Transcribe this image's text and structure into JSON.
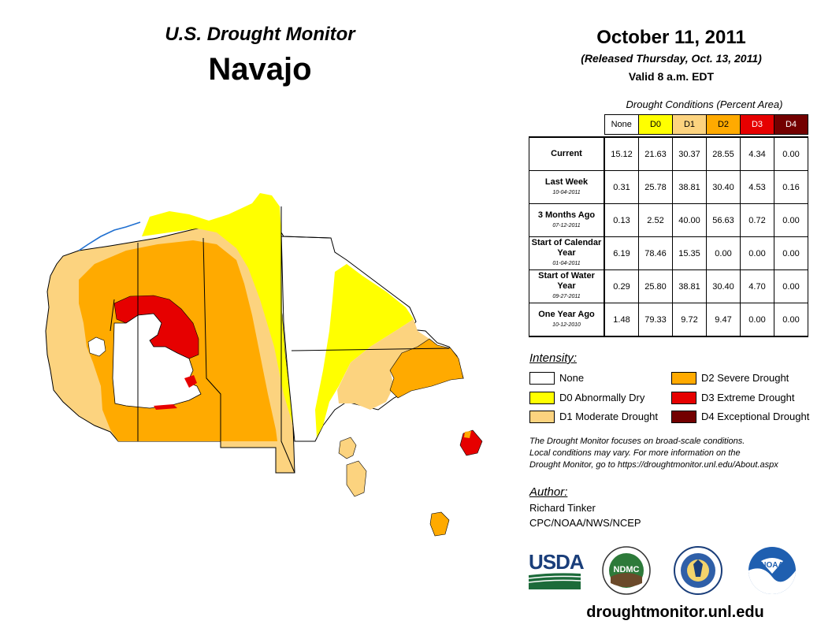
{
  "header": {
    "title": "U.S. Drought Monitor",
    "region": "Navajo",
    "date": "October 11, 2011",
    "released": "(Released Thursday, Oct. 13, 2011)",
    "valid": "Valid 8 a.m. EDT"
  },
  "conditions": {
    "title": "Drought Conditions (Percent Area)",
    "columns": [
      "None",
      "D0",
      "D1",
      "D2",
      "D3",
      "D4"
    ],
    "column_colors": [
      "#ffffff",
      "#ffff00",
      "#fcd37f",
      "#ffaa00",
      "#e60000",
      "#730000"
    ],
    "rows": [
      {
        "label": "Current",
        "date": "",
        "values": [
          "15.12",
          "21.63",
          "30.37",
          "28.55",
          "4.34",
          "0.00"
        ]
      },
      {
        "label": "Last Week",
        "date": "10-04-2011",
        "values": [
          "0.31",
          "25.78",
          "38.81",
          "30.40",
          "4.53",
          "0.16"
        ]
      },
      {
        "label": "3 Months Ago",
        "date": "07-12-2011",
        "values": [
          "0.13",
          "2.52",
          "40.00",
          "56.63",
          "0.72",
          "0.00"
        ]
      },
      {
        "label": "Start of Calendar Year",
        "date": "01-04-2011",
        "values": [
          "6.19",
          "78.46",
          "15.35",
          "0.00",
          "0.00",
          "0.00"
        ]
      },
      {
        "label": "Start of Water Year",
        "date": "09-27-2011",
        "values": [
          "0.29",
          "25.80",
          "38.81",
          "30.40",
          "4.70",
          "0.00"
        ]
      },
      {
        "label": "One Year Ago",
        "date": "10-12-2010",
        "values": [
          "1.48",
          "79.33",
          "9.72",
          "9.47",
          "0.00",
          "0.00"
        ]
      }
    ]
  },
  "legend": {
    "title": "Intensity:",
    "items": [
      {
        "label": "None",
        "color": "#ffffff"
      },
      {
        "label": "D0 Abnormally Dry",
        "color": "#ffff00"
      },
      {
        "label": "D1 Moderate Drought",
        "color": "#fcd37f"
      },
      {
        "label": "D2 Severe Drought",
        "color": "#ffaa00"
      },
      {
        "label": "D3 Extreme Drought",
        "color": "#e60000"
      },
      {
        "label": "D4 Exceptional Drought",
        "color": "#730000"
      }
    ]
  },
  "note": {
    "line1": "The Drought Monitor focuses on broad-scale conditions.",
    "line2": "Local conditions may vary. For more information on the",
    "line3": "Drought Monitor, go to https://droughtmonitor.unl.edu/About.aspx"
  },
  "author": {
    "title": "Author:",
    "name": "Richard Tinker",
    "org": "CPC/NOAA/NWS/NCEP"
  },
  "logos": {
    "usda": "USDA",
    "ndmc": "NDMC",
    "noaa": "NOAA"
  },
  "website": "droughtmonitor.unl.edu"
}
